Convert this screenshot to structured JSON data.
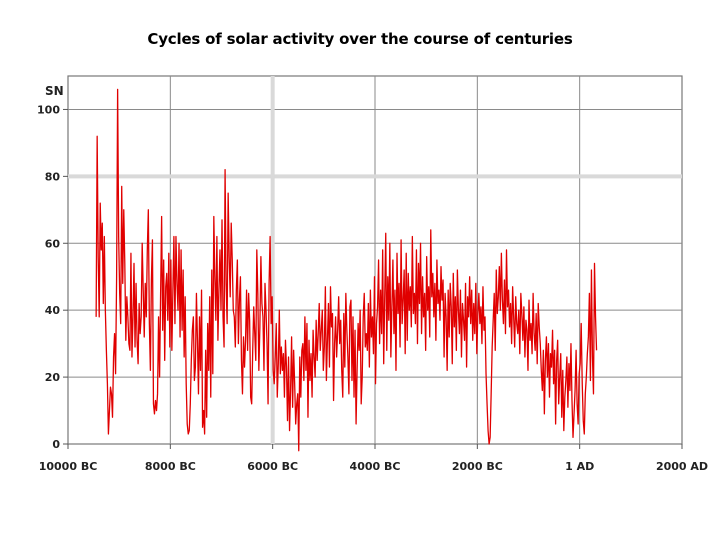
{
  "slide": {
    "title": "Cycles of solar activity over the course of centuries"
  },
  "chart_data": {
    "type": "line",
    "title": "Cycles of solar activity over the course of centuries",
    "ylabel": "SN",
    "xlabel": "",
    "xlim": [
      -10000,
      2000
    ],
    "ylim": [
      0,
      110
    ],
    "x_ticks": [
      {
        "value": -10000,
        "label": "10000 BC"
      },
      {
        "value": -8000,
        "label": "8000 BC"
      },
      {
        "value": -6000,
        "label": "6000 BC"
      },
      {
        "value": -4000,
        "label": "4000 BC"
      },
      {
        "value": -2000,
        "label": "2000 BC"
      },
      {
        "value": 0,
        "label": "1 AD"
      },
      {
        "value": 2000,
        "label": "2000 AD"
      }
    ],
    "y_ticks": [
      0,
      20,
      40,
      60,
      80,
      100
    ],
    "grid": true,
    "line_color": "#e00000",
    "x_step": 20,
    "x_start": -9450,
    "values": [
      38,
      92,
      56,
      38,
      72,
      58,
      66,
      42,
      62,
      40,
      28,
      18,
      3,
      10,
      17,
      15,
      8,
      26,
      33,
      21,
      50,
      106,
      62,
      45,
      36,
      77,
      48,
      70,
      54,
      31,
      44,
      38,
      30,
      28,
      57,
      26,
      38,
      54,
      29,
      48,
      31,
      24,
      42,
      33,
      38,
      60,
      46,
      32,
      48,
      38,
      58,
      70,
      36,
      22,
      49,
      61,
      12,
      9,
      13,
      10,
      15,
      38,
      20,
      45,
      68,
      34,
      55,
      25,
      47,
      51,
      37,
      57,
      29,
      55,
      28,
      46,
      62,
      36,
      62,
      48,
      40,
      60,
      32,
      58,
      34,
      52,
      26,
      44,
      18,
      6,
      3,
      4,
      12,
      25,
      34,
      38,
      19,
      23,
      45,
      31,
      15,
      38,
      22,
      46,
      5,
      10,
      3,
      28,
      8,
      36,
      22,
      44,
      14,
      52,
      21,
      68,
      50,
      37,
      62,
      31,
      46,
      58,
      40,
      67,
      38,
      29,
      82,
      48,
      36,
      75,
      56,
      44,
      66,
      55,
      40,
      38,
      29,
      46,
      55,
      30,
      43,
      50,
      25,
      15,
      32,
      23,
      31,
      46,
      28,
      45,
      37,
      14,
      12,
      28,
      41,
      33,
      25,
      58,
      45,
      22,
      35,
      56,
      42,
      38,
      22,
      48,
      40,
      30,
      12,
      48,
      62,
      36,
      44,
      22,
      18,
      26,
      36,
      14,
      24,
      40,
      21,
      29,
      22,
      27,
      14,
      31,
      23,
      7,
      26,
      4,
      16,
      32,
      11,
      28,
      18,
      6,
      12,
      15,
      -2,
      26,
      14,
      28,
      30,
      19,
      38,
      22,
      36,
      8,
      31,
      19,
      27,
      14,
      34,
      26,
      20,
      37,
      25,
      33,
      42,
      28,
      34,
      40,
      22,
      29,
      47,
      19,
      31,
      42,
      23,
      47,
      35,
      39,
      13,
      30,
      38,
      26,
      34,
      44,
      30,
      37,
      22,
      14,
      39,
      23,
      45,
      34,
      26,
      15,
      41,
      43,
      19,
      38,
      14,
      34,
      6,
      22,
      36,
      28,
      40,
      12,
      20,
      38,
      45,
      29,
      33,
      28,
      42,
      23,
      46,
      32,
      38,
      27,
      50,
      18,
      36,
      41,
      55,
      30,
      46,
      33,
      58,
      24,
      44,
      63,
      28,
      50,
      37,
      60,
      26,
      41,
      55,
      33,
      46,
      22,
      57,
      39,
      48,
      29,
      61,
      36,
      43,
      52,
      27,
      57,
      31,
      51,
      40,
      47,
      35,
      62,
      39,
      45,
      36,
      58,
      30,
      54,
      42,
      60,
      33,
      50,
      38,
      45,
      28,
      56,
      40,
      47,
      32,
      64,
      44,
      51,
      38,
      48,
      31,
      55,
      42,
      46,
      37,
      53,
      43,
      49,
      26,
      45,
      38,
      22,
      46,
      32,
      48,
      41,
      24,
      51,
      35,
      44,
      28,
      52,
      40,
      33,
      46,
      26,
      42,
      37,
      31,
      48,
      23,
      44,
      38,
      50,
      36,
      46,
      31,
      42,
      33,
      48,
      27,
      39,
      45,
      36,
      41,
      30,
      47,
      34,
      38,
      21,
      12,
      4,
      0,
      2,
      15,
      29,
      37,
      45,
      28,
      52,
      39,
      44,
      53,
      40,
      57,
      43,
      36,
      49,
      33,
      58,
      41,
      46,
      35,
      42,
      30,
      47,
      38,
      29,
      44,
      36,
      33,
      40,
      27,
      45,
      39,
      31,
      41,
      26,
      37,
      34,
      22,
      43,
      31,
      36,
      27,
      45,
      33,
      28,
      39,
      24,
      42,
      35,
      30,
      22,
      16,
      28,
      9,
      25,
      32,
      20,
      30,
      14,
      27,
      23,
      34,
      18,
      28,
      6,
      25,
      31,
      12,
      20,
      27,
      8,
      22,
      4,
      14,
      19,
      26,
      11,
      24,
      16,
      30,
      13,
      2,
      9,
      16,
      28,
      12,
      6,
      21,
      24,
      36,
      18,
      7,
      3,
      15,
      20,
      27,
      32,
      45,
      19,
      52,
      26,
      15,
      54,
      38,
      28
    ]
  }
}
